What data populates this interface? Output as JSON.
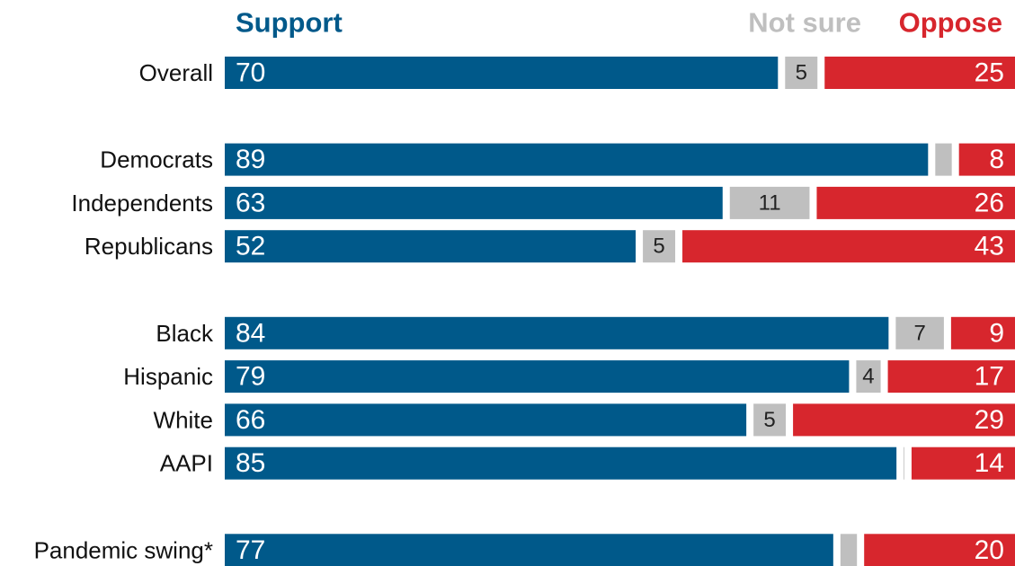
{
  "chart_data": {
    "type": "stacked-bar-horizontal",
    "categories": [
      "Overall",
      null,
      "Democrats",
      "Independents",
      "Republicans",
      null,
      "Black",
      "Hispanic",
      "White",
      "AAPI",
      null,
      "Pandemic swing*"
    ],
    "series": [
      {
        "name": "Support",
        "color": "#00598a",
        "values": [
          70,
          null,
          89,
          63,
          52,
          null,
          84,
          79,
          66,
          85,
          null,
          77
        ]
      },
      {
        "name": "Not sure",
        "color": "#bfbfbf",
        "values": [
          5,
          null,
          3,
          11,
          5,
          null,
          7,
          4,
          5,
          1,
          null,
          3
        ]
      },
      {
        "name": "Oppose",
        "color": "#d7262d",
        "values": [
          25,
          null,
          8,
          26,
          43,
          null,
          9,
          17,
          29,
          14,
          null,
          20
        ]
      }
    ],
    "xlim": [
      0,
      100
    ]
  }
}
